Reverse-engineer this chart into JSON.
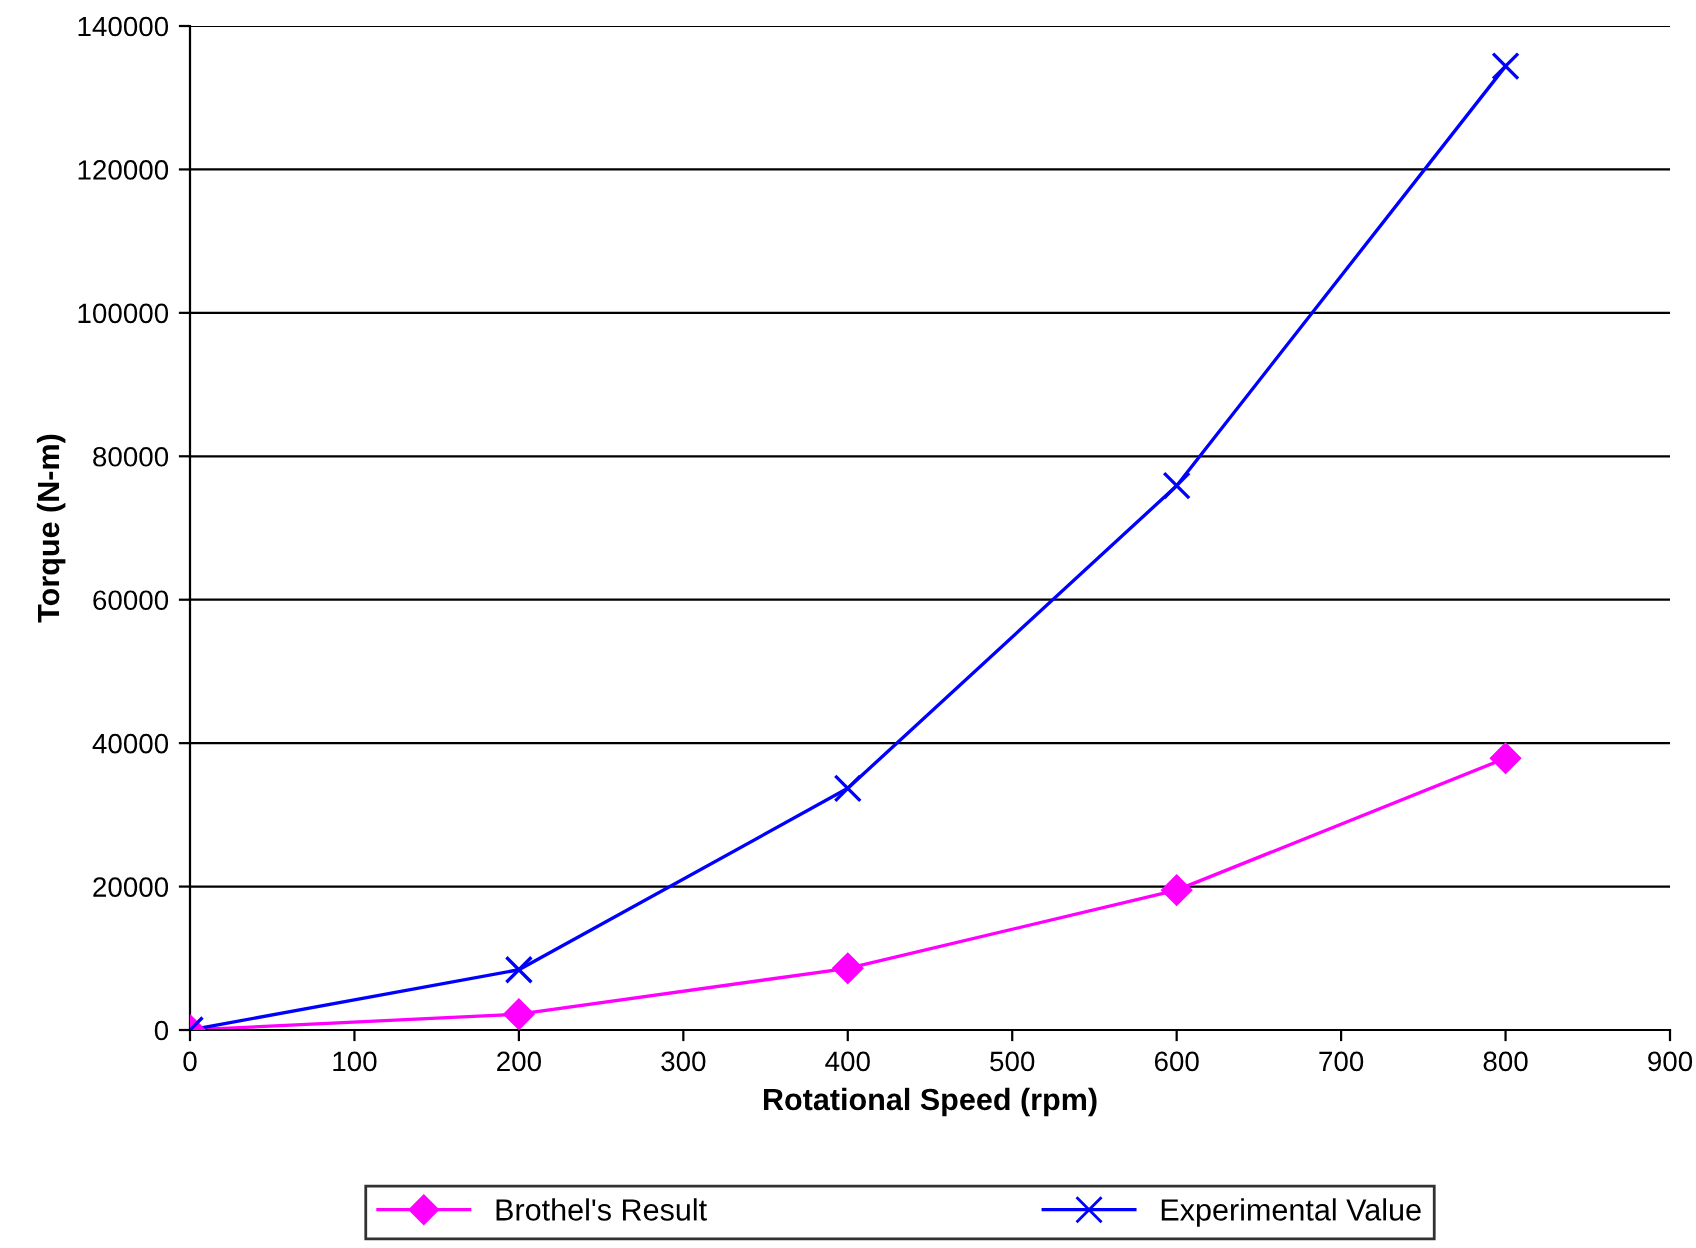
{
  "chart_data": {
    "type": "line",
    "xlabel": "Rotational Speed (rpm)",
    "ylabel": "Torque (N-m)",
    "x": [
      0,
      200,
      400,
      600,
      800
    ],
    "series": [
      {
        "name": "Brothel's Result",
        "color": "#ff00ff",
        "marker": "diamond",
        "values": [
          0,
          2200,
          8600,
          19500,
          37900
        ]
      },
      {
        "name": "Experimental Value",
        "color": "#0000ff",
        "marker": "cross",
        "values": [
          0,
          8400,
          33700,
          75900,
          134400
        ]
      }
    ],
    "xlim": [
      0,
      900
    ],
    "xticks": [
      0,
      100,
      200,
      300,
      400,
      500,
      600,
      700,
      800,
      900
    ],
    "ylim": [
      0,
      140000
    ],
    "yticks": [
      0,
      20000,
      40000,
      60000,
      80000,
      100000,
      120000,
      140000
    ],
    "grid": "y",
    "legend": "bottom",
    "line_style": "solid"
  }
}
